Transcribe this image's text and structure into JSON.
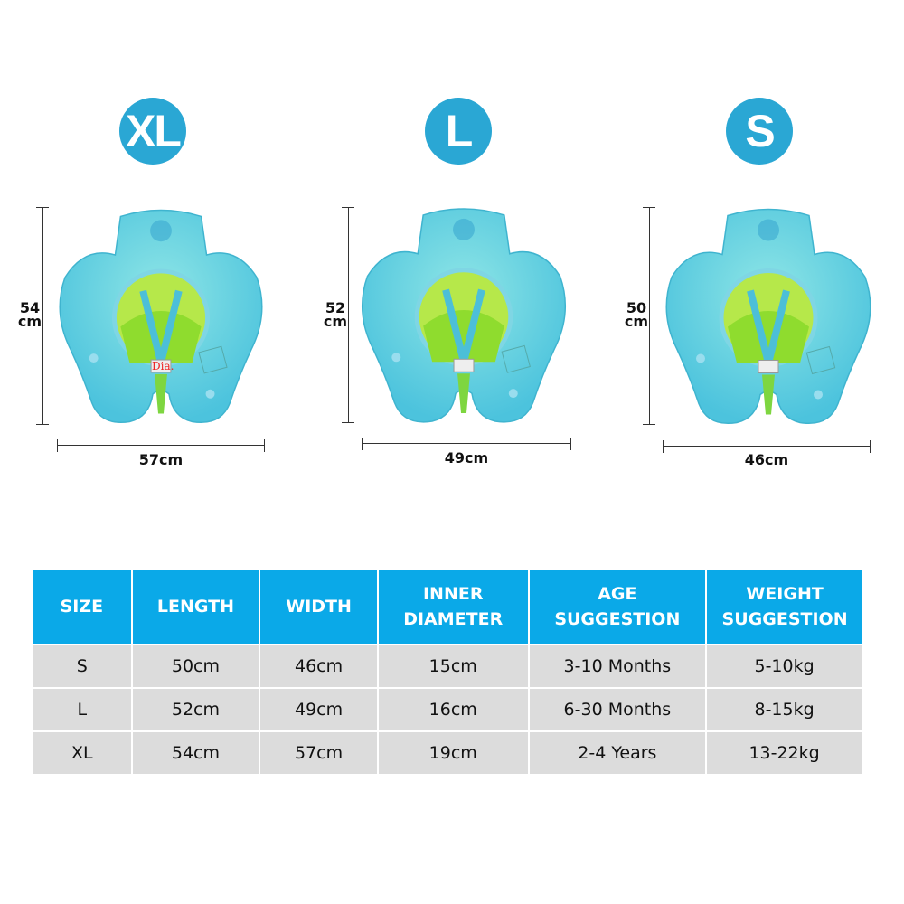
{
  "sizes": [
    {
      "badge": "XL",
      "height_label": "54",
      "height_unit": "cm",
      "width_label": "57cm"
    },
    {
      "badge": "L",
      "height_label": "52",
      "height_unit": "cm",
      "width_label": "49cm"
    },
    {
      "badge": "S",
      "height_label": "50",
      "height_unit": "cm",
      "width_label": "46cm"
    }
  ],
  "float_dia_label": "Dia.",
  "colors": {
    "badge": "#2aa7d4",
    "header": "#0aa9e8",
    "row": "#dcdcdc",
    "float": "#6fd3e0"
  },
  "table": {
    "headers": [
      {
        "line1": "SIZE",
        "line2": ""
      },
      {
        "line1": "LENGTH",
        "line2": ""
      },
      {
        "line1": "WIDTH",
        "line2": ""
      },
      {
        "line1": "INNER",
        "line2": "DIAMETER"
      },
      {
        "line1": "AGE",
        "line2": "SUGGESTION"
      },
      {
        "line1": "WEIGHT",
        "line2": "SUGGESTION"
      }
    ],
    "rows": [
      [
        "S",
        "50cm",
        "46cm",
        "15cm",
        "3-10 Months",
        "5-10kg"
      ],
      [
        "L",
        "52cm",
        "49cm",
        "16cm",
        "6-30 Months",
        "8-15kg"
      ],
      [
        "XL",
        "54cm",
        "57cm",
        "19cm",
        "2-4 Years",
        "13-22kg"
      ]
    ]
  }
}
